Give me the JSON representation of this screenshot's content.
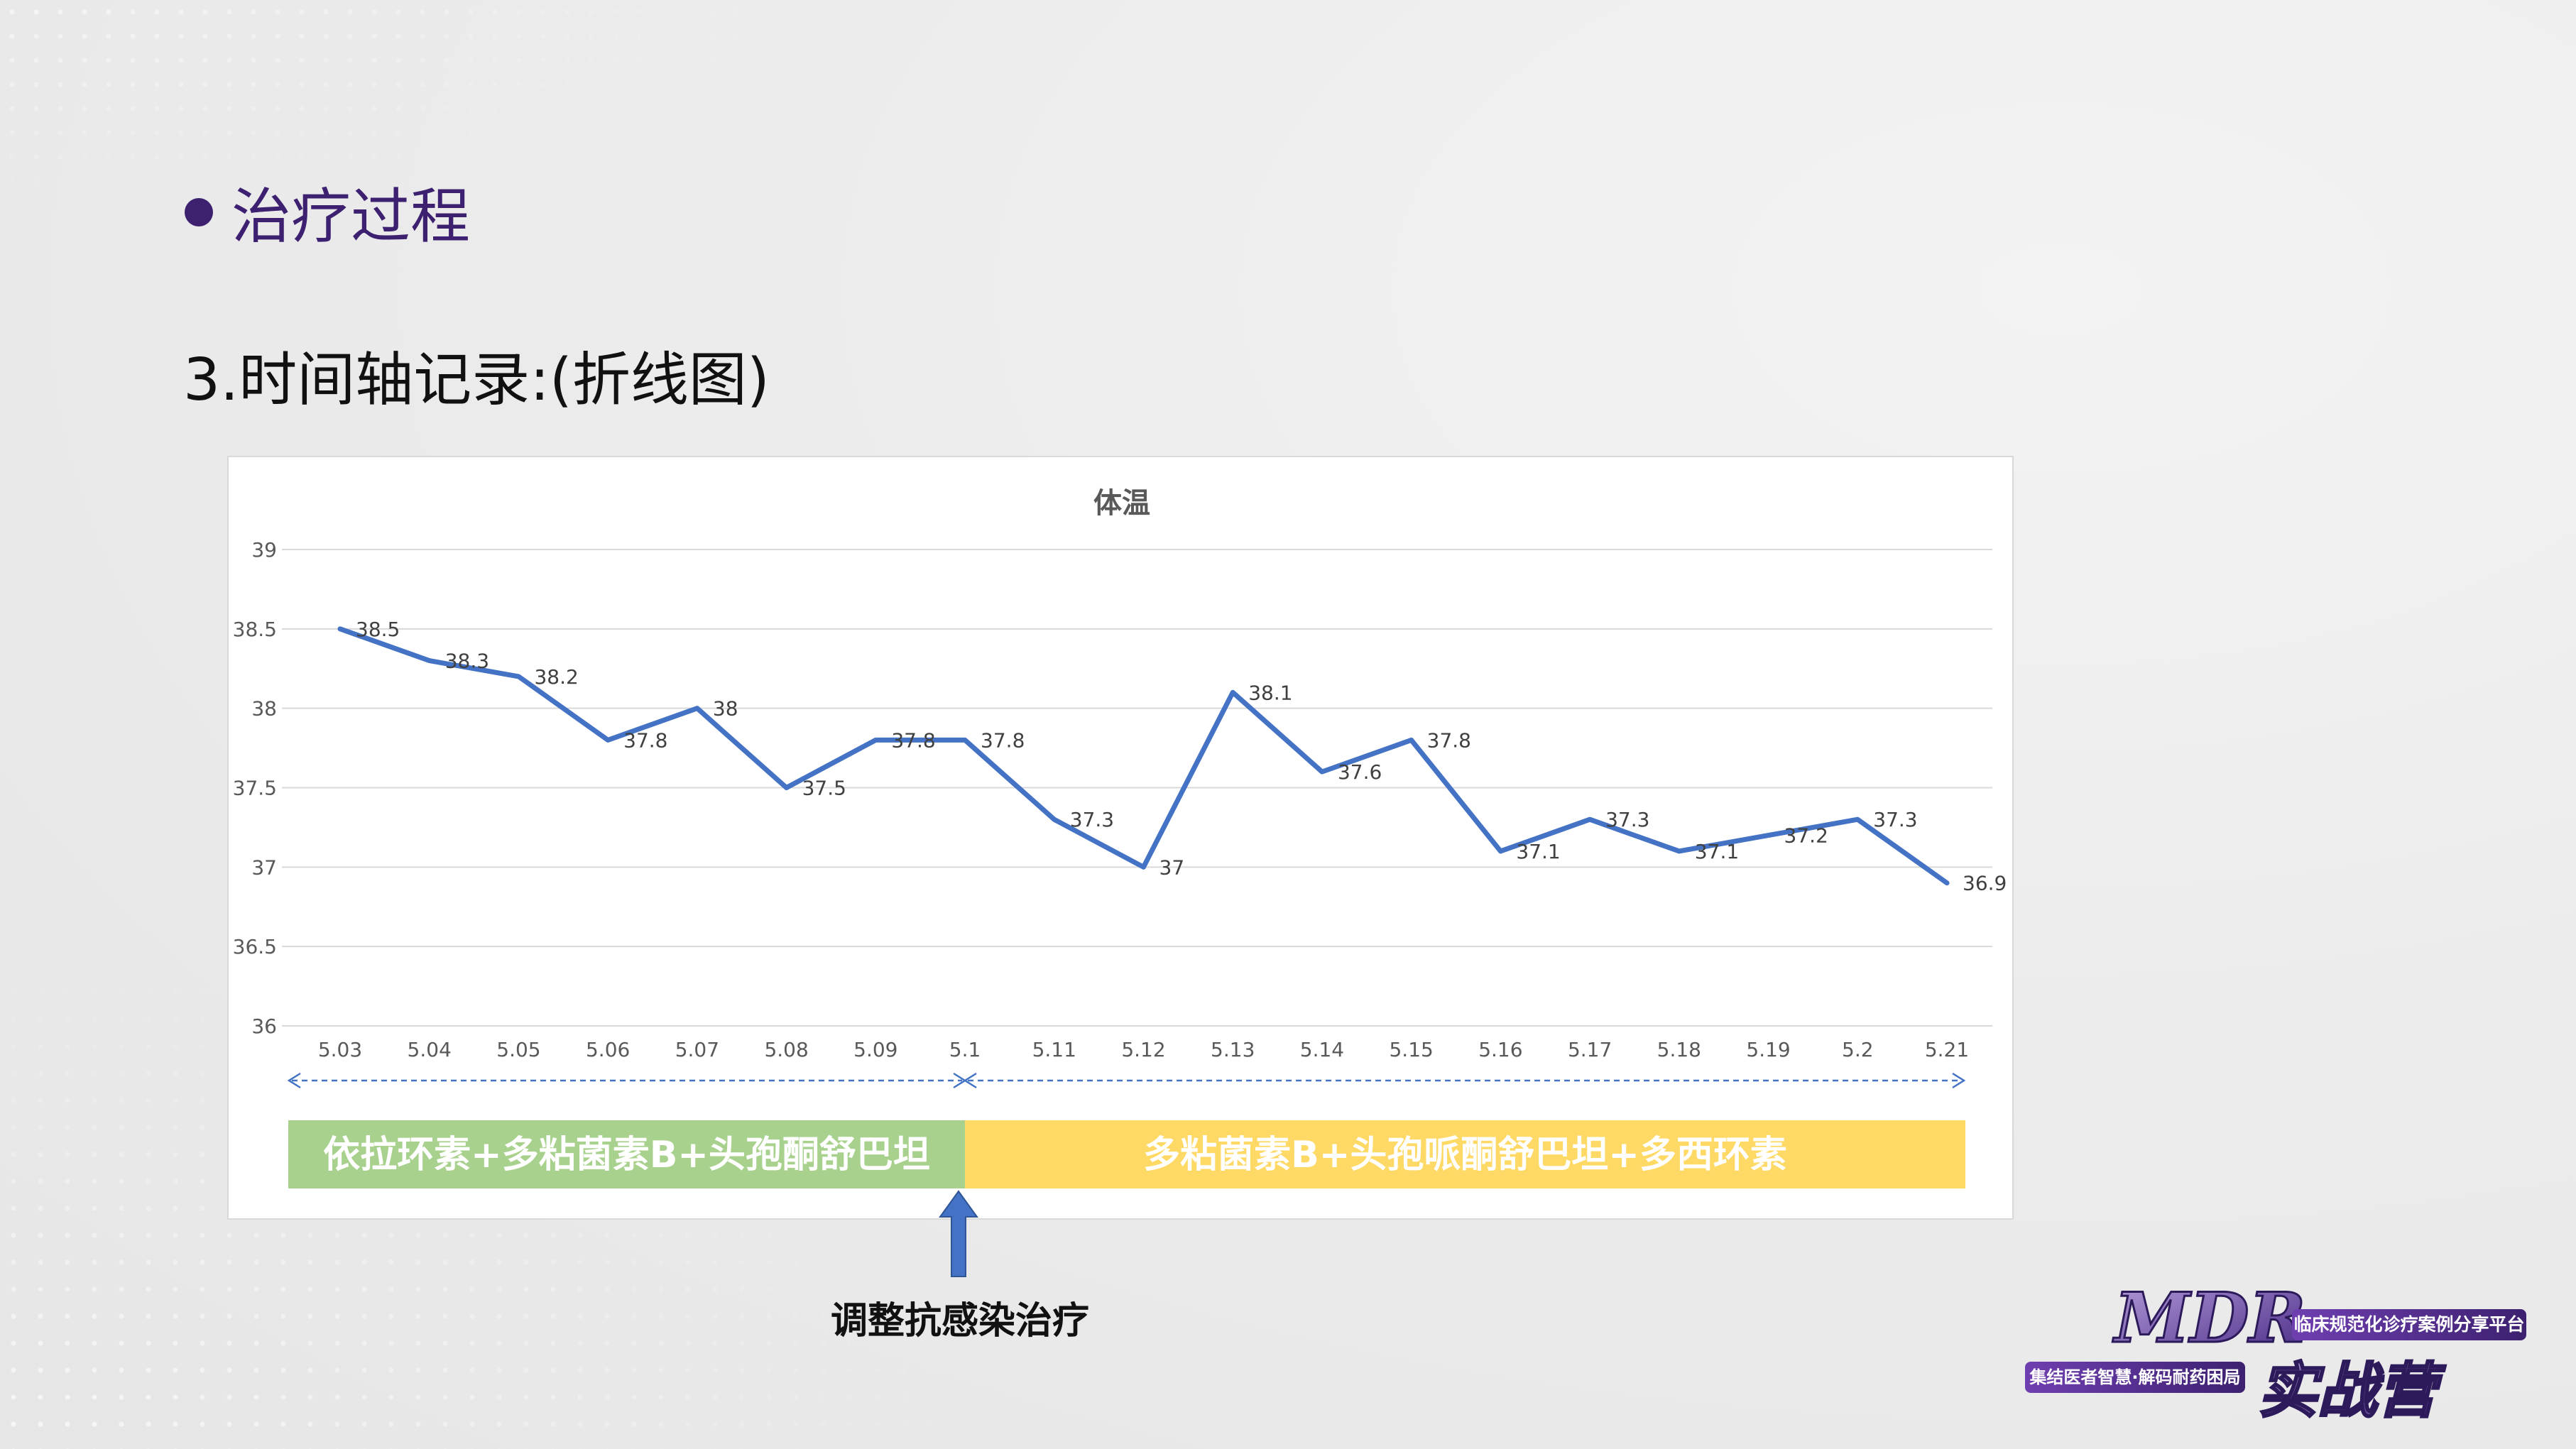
{
  "section": {
    "title": "治疗过程"
  },
  "subtitle": "3.时间轴记录:(折线图)",
  "chart_data": {
    "type": "line",
    "title": "体温",
    "xlabel": "",
    "ylabel": "",
    "categories": [
      "5.03",
      "5.04",
      "5.05",
      "5.06",
      "5.07",
      "5.08",
      "5.09",
      "5.1",
      "5.11",
      "5.12",
      "5.13",
      "5.14",
      "5.15",
      "5.16",
      "5.17",
      "5.18",
      "5.19",
      "5.2",
      "5.21"
    ],
    "series": [
      {
        "values": [
          38.5,
          38.3,
          38.2,
          37.8,
          38,
          37.5,
          37.8,
          37.8,
          37.3,
          37,
          38.1,
          37.6,
          37.8,
          37.1,
          37.3,
          37.1,
          37.2,
          37.3,
          36.9
        ]
      }
    ],
    "ylim": [
      36,
      39
    ],
    "yticks": [
      36,
      36.5,
      37,
      37.5,
      38,
      38.5,
      39
    ],
    "ytick_labels": [
      "36",
      "36.5",
      "37",
      "37.5",
      "38",
      "38.5",
      "39"
    ],
    "grid": true,
    "line_color": "#4472c4",
    "phases": [
      {
        "label": "依拉环素+多粘菌素B+头孢酮舒巴坦",
        "from": 0,
        "to": 7,
        "color": "#a9d18e"
      },
      {
        "label": "多粘菌素B+头孢哌酮舒巴坦+多西环素",
        "from": 7,
        "to": 18,
        "color": "#ffd966"
      }
    ]
  },
  "annotation": {
    "label": "调整抗感染治疗",
    "arrow_color": "#4472c4"
  },
  "logo": {
    "brand": "MDR",
    "tagline": "临床规范化诊疗案例分享平台",
    "name": "实战营",
    "slogan": "集结医者智慧·解码耐药困局"
  }
}
